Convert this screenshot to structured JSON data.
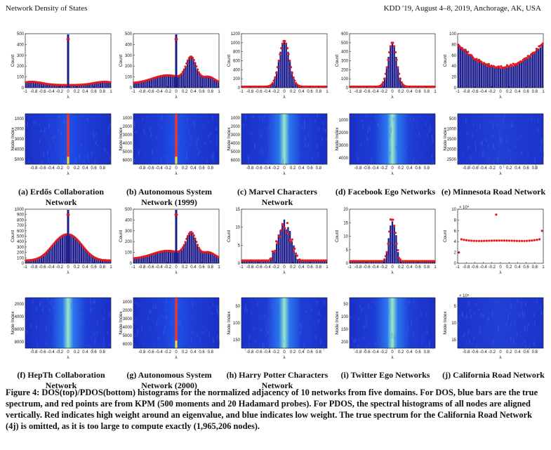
{
  "header": {
    "left": "Network Density of States",
    "right": "KDD '19, August 4–8, 2019, Anchorage, AK, USA"
  },
  "colors": {
    "bar": "#1c1c8c",
    "kpm": "#e31a1c",
    "heat_low": "#1b2fd0",
    "heat_high": "#e02020"
  },
  "common": {
    "dos_ylabel": "Count",
    "pdos_ylabel": "Node Index",
    "xlabel": "λ",
    "x_ticks_dos": [
      "-1",
      "-0.8",
      "-0.6",
      "-0.4",
      "-0.2",
      "0",
      "0.2",
      "0.4",
      "0.6",
      "0.8",
      "1"
    ],
    "x_ticks_pdos": [
      "-0.8",
      "-0.6",
      "-0.4",
      "-0.2",
      "0",
      "0.2",
      "0.4",
      "0.6",
      "0.8"
    ]
  },
  "panels": [
    {
      "id": "a",
      "caption": "(a) Erdős Collaboration Network",
      "dos": {
        "shape": "spike_flat",
        "y_ticks": [
          "0",
          "100",
          "200",
          "300",
          "400",
          "500"
        ]
      },
      "pdos": {
        "style": "spike",
        "y_ticks": [
          "1000",
          "2000",
          "3000",
          "4000",
          "5000"
        ]
      }
    },
    {
      "id": "b",
      "caption": "(b) Autonomous System Network (1999)",
      "dos": {
        "shape": "spike_bumps",
        "y_ticks": [
          "0",
          "100",
          "200",
          "300",
          "400",
          "500"
        ]
      },
      "pdos": {
        "style": "spike",
        "y_ticks": [
          "1000",
          "2000",
          "3000",
          "4000",
          "5000",
          "6000"
        ]
      }
    },
    {
      "id": "c",
      "caption": "(c) Marvel Characters Network",
      "dos": {
        "shape": "peak_wide",
        "y_ticks": [
          "0",
          "200",
          "400",
          "600",
          "800",
          "1000",
          "1200"
        ]
      },
      "pdos": {
        "style": "glow",
        "y_ticks": [
          "1000",
          "2000",
          "3000",
          "4000",
          "5000",
          "6000"
        ]
      }
    },
    {
      "id": "d",
      "caption": "(d) Facebook Ego Networks",
      "dos": {
        "shape": "peak_narrow",
        "y_ticks": [
          "0",
          "100",
          "200",
          "300",
          "400",
          "500",
          "600"
        ]
      },
      "pdos": {
        "style": "glow",
        "y_ticks": [
          "1000",
          "2000",
          "3000",
          "4000"
        ]
      }
    },
    {
      "id": "e",
      "caption": "(e) Minnesota Road Network",
      "dos": {
        "shape": "u_shape",
        "y_ticks": [
          "0",
          "20",
          "40",
          "60",
          "80",
          "100"
        ]
      },
      "pdos": {
        "style": "flat",
        "y_ticks": [
          "500",
          "1000",
          "1500",
          "2000",
          "2500"
        ]
      }
    },
    {
      "id": "f",
      "caption": "(f) HepTh Collaboration Network",
      "dos": {
        "shape": "spike_hill",
        "y_ticks": [
          "0",
          "100",
          "200",
          "300",
          "400",
          "500",
          "600",
          "700",
          "800",
          "900",
          "1000"
        ]
      },
      "pdos": {
        "style": "glow",
        "y_ticks": [
          "2000",
          "4000",
          "6000",
          "8000"
        ]
      }
    },
    {
      "id": "g",
      "caption": "(g) Autonomous System Network (2000)",
      "dos": {
        "shape": "spike_bumps",
        "y_ticks": [
          "0",
          "100",
          "200",
          "300",
          "400",
          "500"
        ]
      },
      "pdos": {
        "style": "spike",
        "y_ticks": [
          "1000",
          "2000",
          "3000",
          "4000",
          "5000",
          "6000"
        ]
      }
    },
    {
      "id": "h",
      "caption": "(h) Harry Potter Characters Network",
      "dos": {
        "shape": "noisy_peak",
        "y_ticks": [
          "0",
          "5",
          "10",
          "15"
        ]
      },
      "pdos": {
        "style": "glow",
        "y_ticks": [
          "50",
          "100",
          "150"
        ]
      }
    },
    {
      "id": "i",
      "caption": "(i) Twitter Ego Networks",
      "dos": {
        "shape": "noisy_narrow",
        "y_ticks": [
          "0",
          "5",
          "10",
          "15",
          "20"
        ]
      },
      "pdos": {
        "style": "glow",
        "y_ticks": [
          "50",
          "100",
          "150",
          "200"
        ]
      }
    },
    {
      "id": "j",
      "caption": "(j) California Road Network",
      "dos": {
        "shape": "kpm_only",
        "exponent": "× 10⁴",
        "y_ticks": [
          "0",
          "2",
          "4",
          "6",
          "8",
          "10"
        ]
      },
      "pdos": {
        "style": "flat",
        "exponent": "× 10⁵",
        "y_ticks": [
          "5",
          "10",
          "15"
        ]
      }
    }
  ],
  "caption": {
    "label": "Figure 4:",
    "text": "DOS(top)/PDOS(bottom) histograms for the normalized adjacency of 10 networks from five domains. For DOS, blue bars are the true spectrum, and red points are from KPM (500 moments and 20 Hadamard probes). For PDOS, the spectral histograms of all nodes are aligned vertically. Red indicates high weight around an eigenvalue, and blue indicates low weight. The true spectrum for the California Road Network (4j) is omitted, as it is too large to compute exactly (1,965,206 nodes)."
  }
}
